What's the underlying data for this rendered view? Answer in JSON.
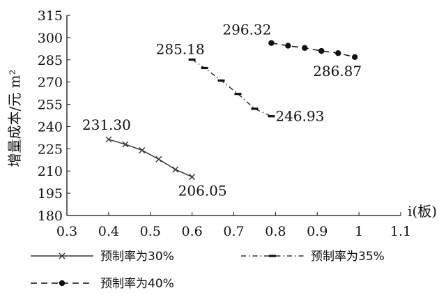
{
  "chart_data": {
    "type": "line",
    "ylabel": "增量成本/元 m²",
    "xlabel": "i(板)",
    "xlim": [
      0.3,
      1.1
    ],
    "ylim": [
      180,
      315
    ],
    "x_ticks": [
      "0.3",
      "0.4",
      "0.5",
      "0.6",
      "0.7",
      "0.8",
      "0.9",
      "1",
      "1.1"
    ],
    "y_ticks": [
      "180",
      "195",
      "210",
      "225",
      "240",
      "255",
      "270",
      "285",
      "300",
      "315"
    ],
    "grid": false,
    "legend_position": "bottom",
    "series": [
      {
        "name": "预制率为30%",
        "style": "solid",
        "marker": "x",
        "color": "#333333",
        "x": [
          0.4,
          0.44,
          0.48,
          0.52,
          0.56,
          0.6
        ],
        "y": [
          231.3,
          228.0,
          224.0,
          218.0,
          211.0,
          206.05
        ]
      },
      {
        "name": "预制率为35%",
        "style": "dashdot",
        "marker": "dash",
        "color": "#333333",
        "x": [
          0.6,
          0.63,
          0.67,
          0.71,
          0.75,
          0.79
        ],
        "y": [
          285.18,
          279.5,
          271.0,
          262.0,
          252.0,
          246.93
        ]
      },
      {
        "name": "预制率为40%",
        "style": "dashed",
        "marker": "circle",
        "color": "#111111",
        "x": [
          0.79,
          0.83,
          0.87,
          0.91,
          0.95,
          0.99
        ],
        "y": [
          296.32,
          294.5,
          293.0,
          291.0,
          289.5,
          286.87
        ]
      }
    ],
    "annotations": [
      {
        "text": "231.30",
        "series": 0,
        "point": 0
      },
      {
        "text": "206.05",
        "series": 0,
        "point": 5
      },
      {
        "text": "285.18",
        "series": 1,
        "point": 0
      },
      {
        "text": "246.93",
        "series": 1,
        "point": 5
      },
      {
        "text": "296.32",
        "series": 2,
        "point": 0
      },
      {
        "text": "286.87",
        "series": 2,
        "point": 5
      }
    ]
  }
}
